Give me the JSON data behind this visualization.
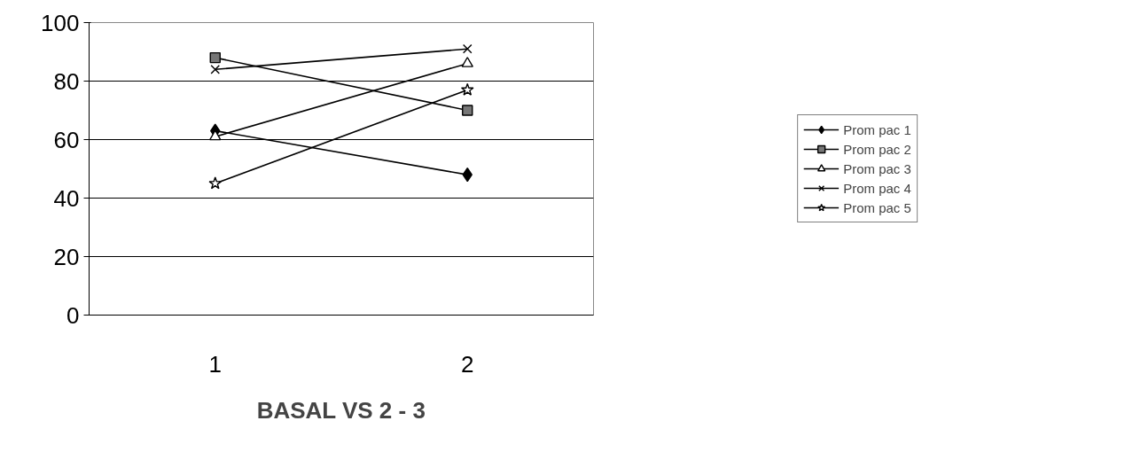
{
  "chart_data": {
    "type": "line",
    "xlabel": "BASAL VS 2 - 3",
    "categories": [
      "1",
      "2"
    ],
    "ylim": [
      0,
      100
    ],
    "yticks": [
      0,
      20,
      40,
      60,
      80,
      100
    ],
    "grid": "y",
    "legend": "right",
    "series": [
      {
        "name": "Prom pac 1",
        "color": "#000000",
        "marker": "diamond",
        "values": [
          63,
          48
        ]
      },
      {
        "name": "Prom pac 2",
        "color": "#000000",
        "marker": "square",
        "values": [
          88,
          70
        ]
      },
      {
        "name": "Prom pac 3",
        "color": "#000000",
        "marker": "triangle",
        "values": [
          61,
          86
        ]
      },
      {
        "name": "Prom pac 4",
        "color": "#000000",
        "marker": "cross",
        "values": [
          84,
          91
        ]
      },
      {
        "name": "Prom pac 5",
        "color": "#000000",
        "marker": "star",
        "values": [
          45,
          77
        ]
      }
    ]
  }
}
